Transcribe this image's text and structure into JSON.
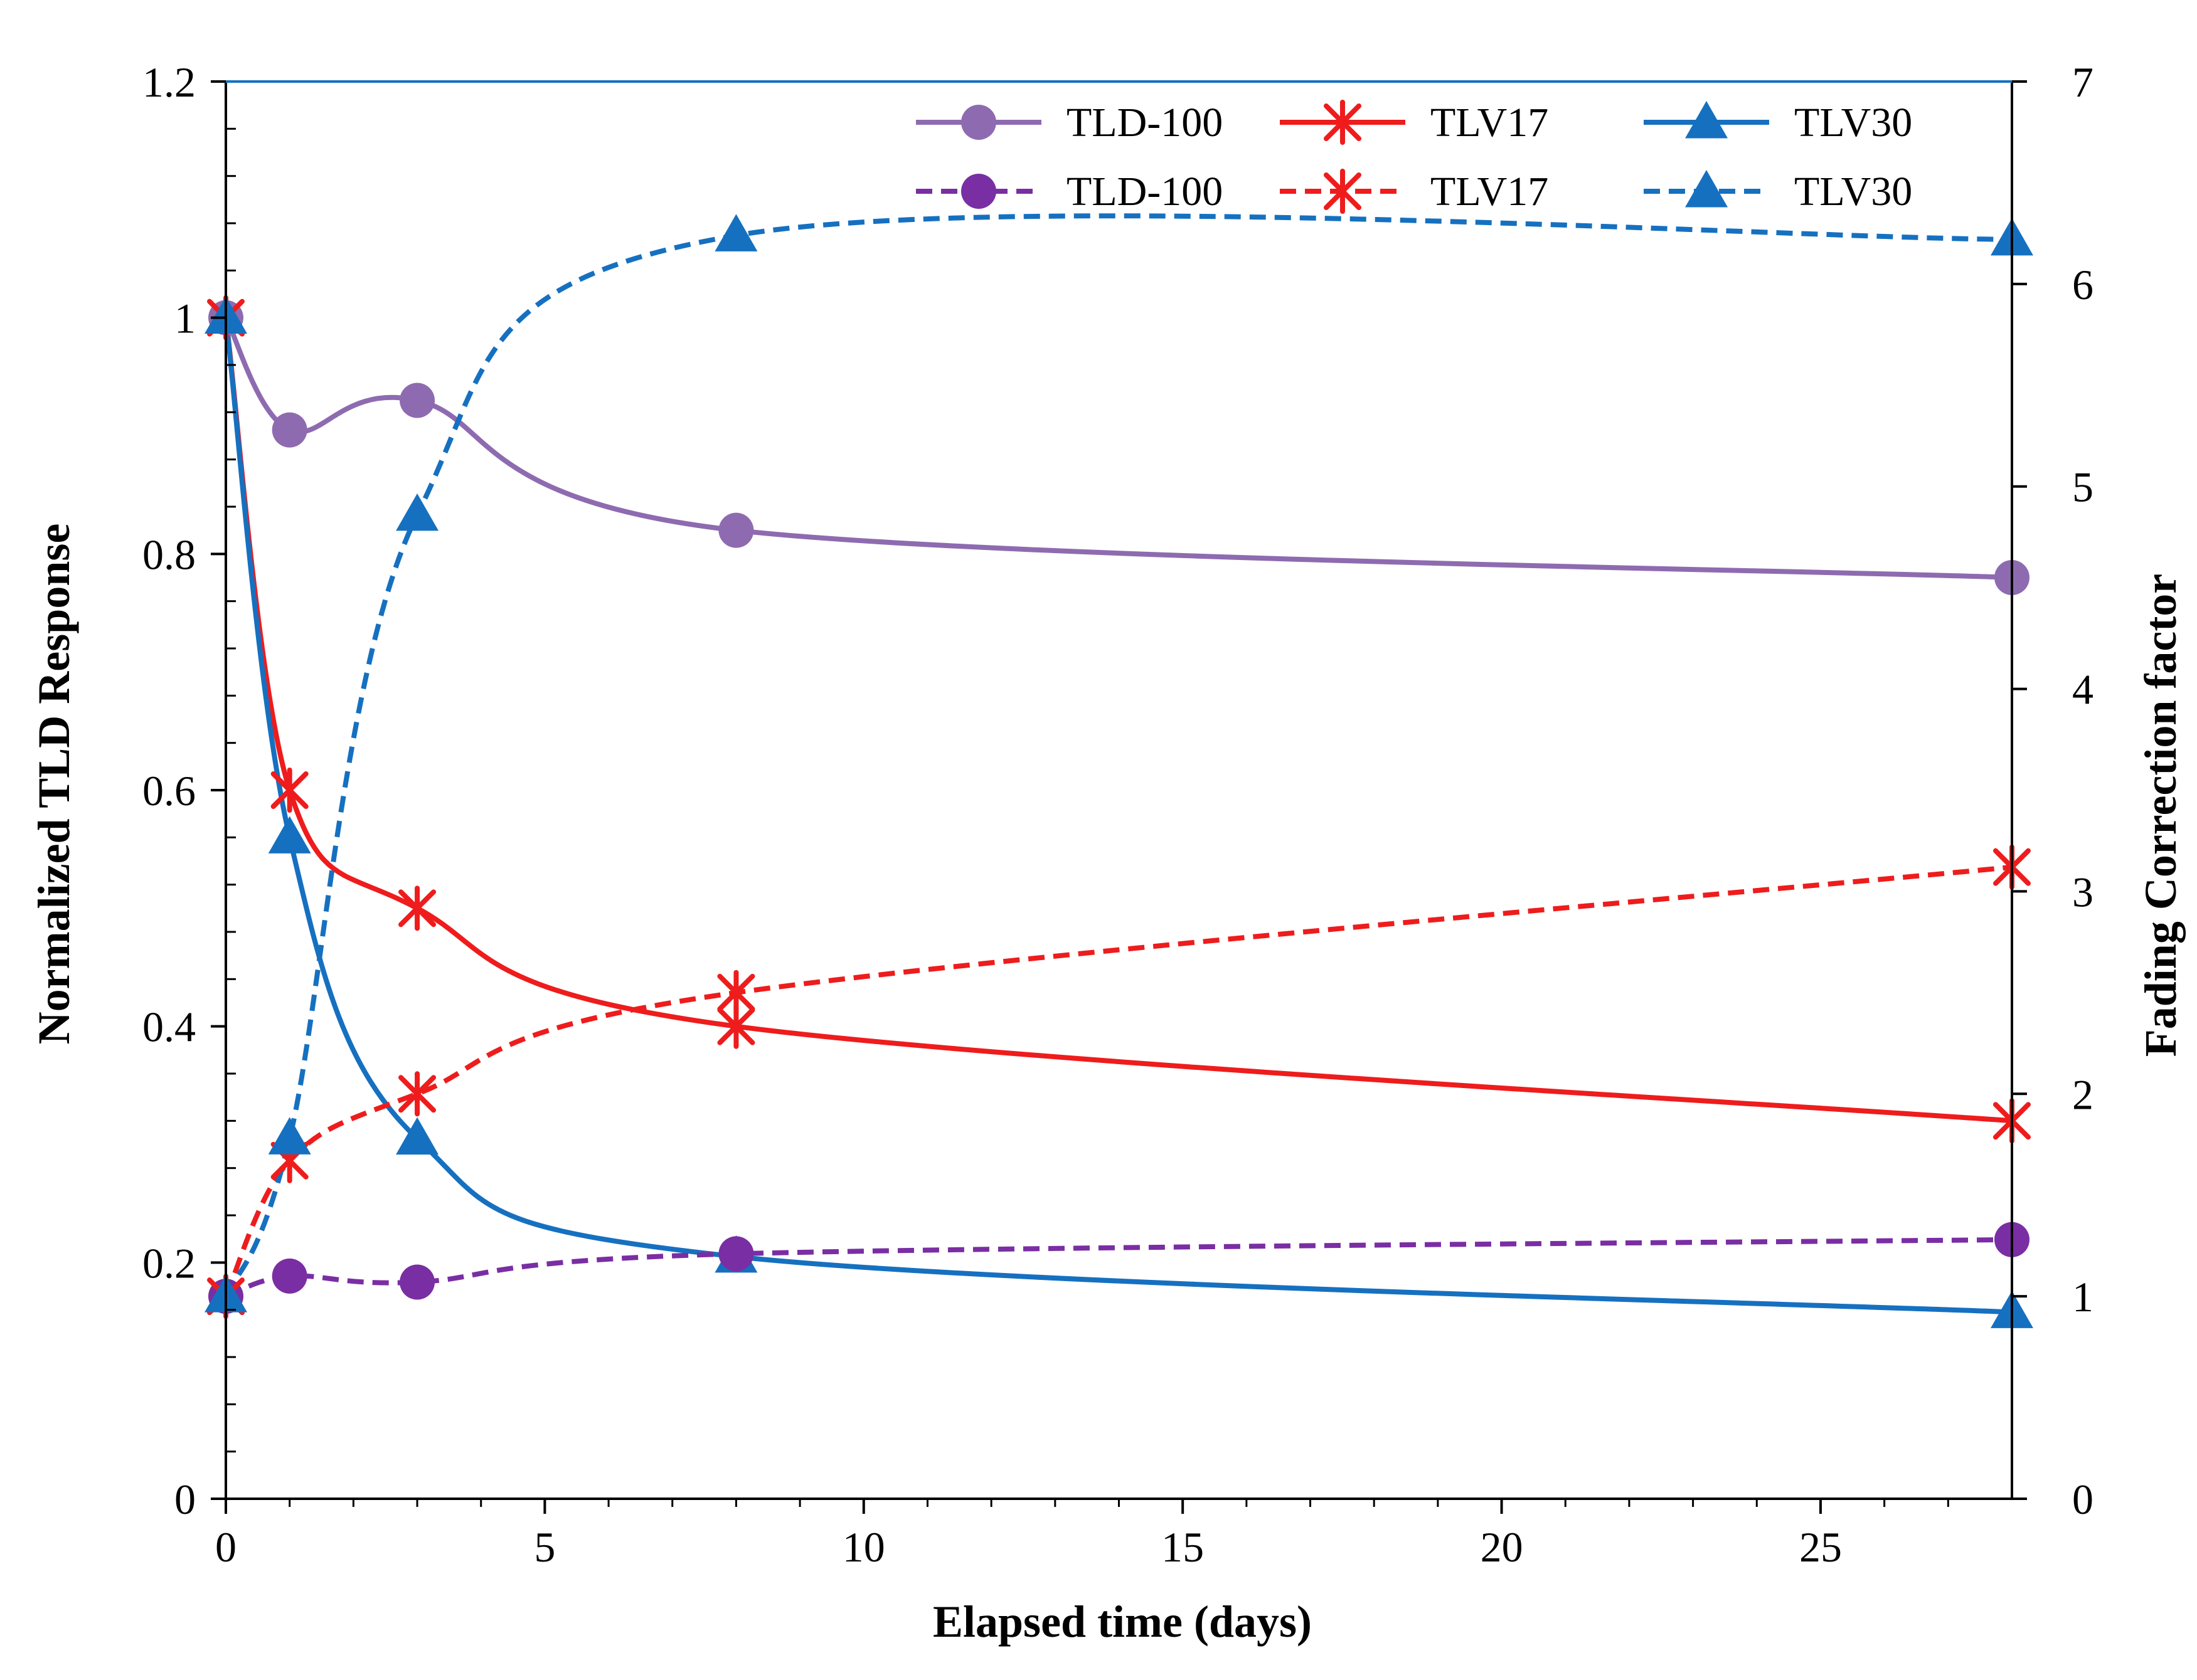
{
  "chart_data": {
    "type": "line",
    "title": "",
    "xlabel": "Elapsed time (days)",
    "ylabel_left": "Normalized TLD Response",
    "ylabel_right": "Fading Correction factor",
    "xlim": [
      0,
      28
    ],
    "ylim_left": [
      0,
      1.2
    ],
    "ylim_right": [
      0,
      7
    ],
    "x_ticks": [
      0,
      5,
      10,
      15,
      20,
      25
    ],
    "x_tick_labels": [
      "0",
      "5",
      "10",
      "15",
      "20",
      "25"
    ],
    "y_left_ticks": [
      0,
      0.2,
      0.4,
      0.6,
      0.8,
      1,
      1.2
    ],
    "y_left_tick_labels": [
      "0",
      "0.2",
      "0.4",
      "0.6",
      "0.8",
      "1",
      "1.2"
    ],
    "y_right_ticks": [
      0,
      1,
      2,
      3,
      4,
      5,
      6,
      7
    ],
    "y_right_tick_labels": [
      "0",
      "1",
      "2",
      "3",
      "4",
      "5",
      "6",
      "7"
    ],
    "grid": false,
    "legend_position": "top-right",
    "series": [
      {
        "name": "TLD-100",
        "axis": "left",
        "style": "solid",
        "marker": "circle",
        "color": "#8e6bb0",
        "x": [
          0,
          1,
          3,
          8,
          28
        ],
        "values": [
          1.0,
          0.905,
          0.93,
          0.82,
          0.78
        ]
      },
      {
        "name": "TLV17",
        "axis": "left",
        "style": "solid",
        "marker": "star",
        "color": "#ee1c1c",
        "x": [
          0,
          1,
          3,
          8,
          28
        ],
        "values": [
          1.0,
          0.6,
          0.5,
          0.4,
          0.32
        ]
      },
      {
        "name": "TLV30",
        "axis": "left",
        "style": "solid",
        "marker": "triangle",
        "color": "#1670c0",
        "x": [
          0,
          1,
          3,
          8,
          28
        ],
        "values": [
          1.0,
          0.56,
          0.305,
          0.205,
          0.158
        ]
      },
      {
        "name": "TLD-100",
        "axis": "right",
        "style": "dashed",
        "marker": "circle",
        "color": "#7a2ea3",
        "x": [
          0,
          1,
          3,
          8,
          28
        ],
        "values": [
          1.0,
          1.1,
          1.07,
          1.21,
          1.28
        ]
      },
      {
        "name": "TLV17",
        "axis": "right",
        "style": "dashed",
        "marker": "star",
        "color": "#ee1c1c",
        "x": [
          0,
          1,
          3,
          8,
          28
        ],
        "values": [
          1.0,
          1.67,
          2.0,
          2.5,
          3.12
        ]
      },
      {
        "name": "TLV30",
        "axis": "right",
        "style": "dashed",
        "marker": "triangle",
        "color": "#1670c0",
        "x": [
          0,
          1,
          3,
          8,
          28
        ],
        "values": [
          1.0,
          1.78,
          4.86,
          6.24,
          6.22
        ]
      }
    ]
  }
}
